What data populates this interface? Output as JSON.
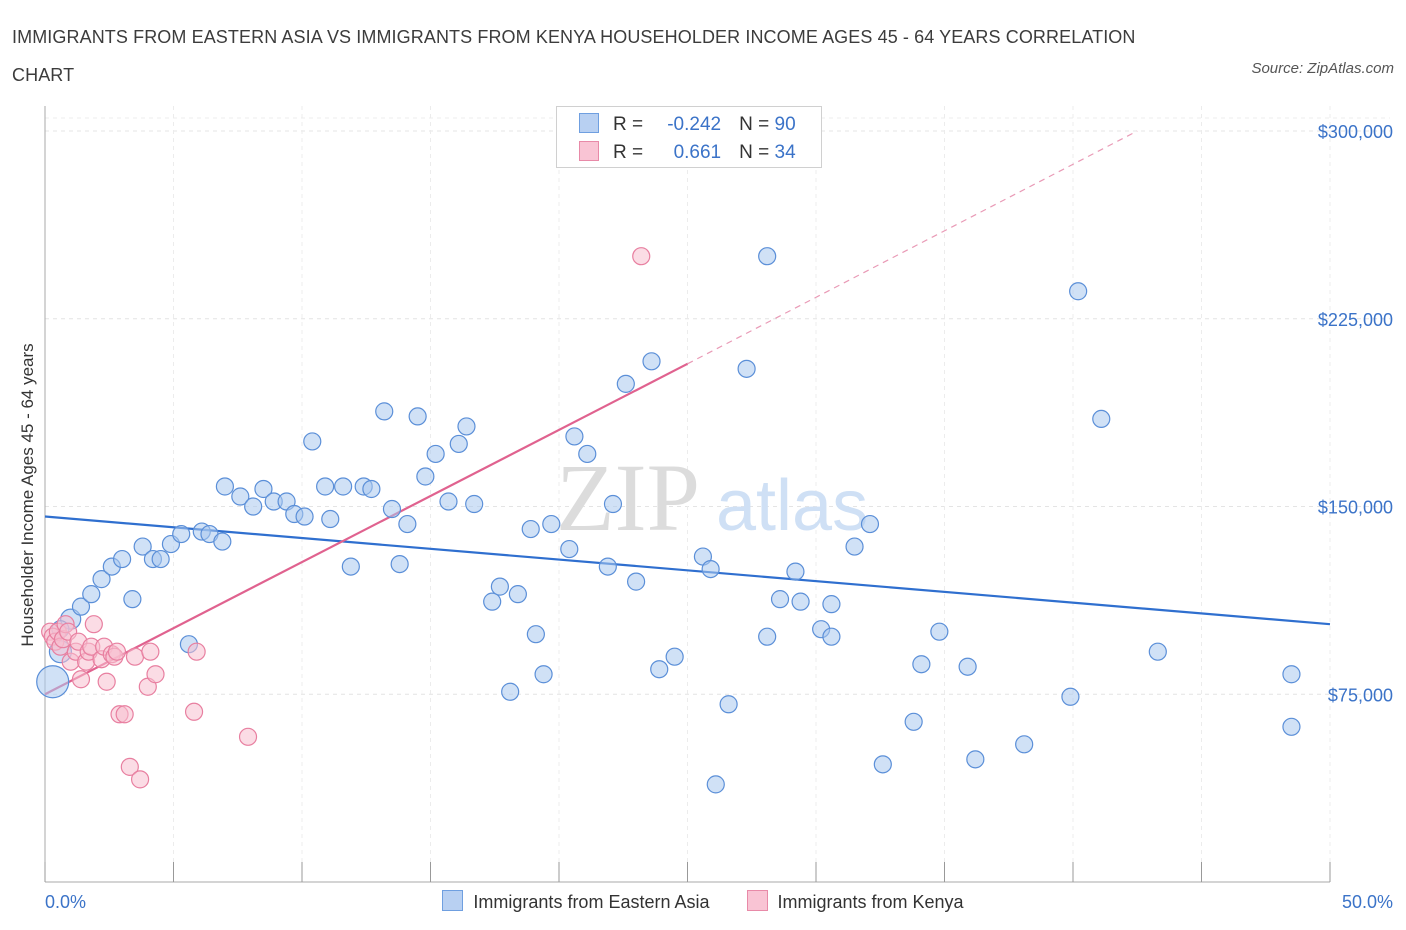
{
  "title": "IMMIGRANTS FROM EASTERN ASIA VS IMMIGRANTS FROM KENYA HOUSEHOLDER INCOME AGES 45 - 64 YEARS CORRELATION CHART",
  "source": "Source: ZipAtlas.com",
  "watermark": {
    "zip": "ZIP",
    "atlas": "atlas"
  },
  "legend": {
    "rows": [
      {
        "r_label": "R =",
        "r_value": "-0.242",
        "n_label": "N =",
        "n_value": "90",
        "color": "#b8d0f2",
        "border": "#6f9fe0"
      },
      {
        "r_label": "R =",
        "r_value": "0.661",
        "n_label": "N =",
        "n_value": "34",
        "color": "#f9c4d4",
        "border": "#e88aa8"
      }
    ]
  },
  "chart_data": {
    "type": "scatter",
    "xlabel": "",
    "ylabel": "Householder Income Ages 45 - 64 years",
    "xlim": [
      0,
      50
    ],
    "ylim": [
      0,
      310000
    ],
    "x_tick_labels": [
      {
        "value": 0,
        "label": "0.0%"
      },
      {
        "value": 50,
        "label": "50.0%"
      }
    ],
    "y_ticks": [
      {
        "value": 75000,
        "label": "$75,000"
      },
      {
        "value": 150000,
        "label": "$150,000"
      },
      {
        "value": 225000,
        "label": "$225,000"
      },
      {
        "value": 300000,
        "label": "$300,000"
      }
    ],
    "grid": true,
    "series": [
      {
        "name": "Immigrants from Eastern Asia",
        "color": "#aac8ef",
        "stroke": "#5b8fd8",
        "trend": {
          "x": [
            0,
            50
          ],
          "y": [
            146000,
            103000
          ],
          "color": "#2f6fcf"
        },
        "points": [
          {
            "x": 0.3,
            "y": 80000,
            "r": 16
          },
          {
            "x": 0.6,
            "y": 92000,
            "r": 11
          },
          {
            "x": 1.0,
            "y": 105000,
            "r": 10
          },
          {
            "x": 1.4,
            "y": 110000
          },
          {
            "x": 1.8,
            "y": 115000
          },
          {
            "x": 2.2,
            "y": 121000
          },
          {
            "x": 2.6,
            "y": 126000
          },
          {
            "x": 3.0,
            "y": 129000
          },
          {
            "x": 3.4,
            "y": 113000
          },
          {
            "x": 3.8,
            "y": 134000
          },
          {
            "x": 4.2,
            "y": 129000
          },
          {
            "x": 4.5,
            "y": 129000
          },
          {
            "x": 4.9,
            "y": 135000
          },
          {
            "x": 5.3,
            "y": 139000
          },
          {
            "x": 5.6,
            "y": 95000
          },
          {
            "x": 6.1,
            "y": 140000
          },
          {
            "x": 6.4,
            "y": 139000
          },
          {
            "x": 6.9,
            "y": 136000
          },
          {
            "x": 7.0,
            "y": 158000
          },
          {
            "x": 7.6,
            "y": 154000
          },
          {
            "x": 8.1,
            "y": 150000
          },
          {
            "x": 8.5,
            "y": 157000
          },
          {
            "x": 8.9,
            "y": 152000
          },
          {
            "x": 9.4,
            "y": 152000
          },
          {
            "x": 9.7,
            "y": 147000
          },
          {
            "x": 10.1,
            "y": 146000
          },
          {
            "x": 10.4,
            "y": 176000
          },
          {
            "x": 10.9,
            "y": 158000
          },
          {
            "x": 11.1,
            "y": 145000
          },
          {
            "x": 11.6,
            "y": 158000
          },
          {
            "x": 11.9,
            "y": 126000
          },
          {
            "x": 12.4,
            "y": 158000
          },
          {
            "x": 12.7,
            "y": 157000
          },
          {
            "x": 13.2,
            "y": 188000
          },
          {
            "x": 13.5,
            "y": 149000
          },
          {
            "x": 13.8,
            "y": 127000
          },
          {
            "x": 14.1,
            "y": 143000
          },
          {
            "x": 14.5,
            "y": 186000
          },
          {
            "x": 14.8,
            "y": 162000
          },
          {
            "x": 15.2,
            "y": 171000
          },
          {
            "x": 15.7,
            "y": 152000
          },
          {
            "x": 16.1,
            "y": 175000
          },
          {
            "x": 16.4,
            "y": 182000
          },
          {
            "x": 16.7,
            "y": 151000
          },
          {
            "x": 17.4,
            "y": 112000
          },
          {
            "x": 17.7,
            "y": 118000
          },
          {
            "x": 18.1,
            "y": 76000
          },
          {
            "x": 18.4,
            "y": 115000
          },
          {
            "x": 18.9,
            "y": 141000
          },
          {
            "x": 19.1,
            "y": 99000
          },
          {
            "x": 19.4,
            "y": 83000
          },
          {
            "x": 19.7,
            "y": 143000
          },
          {
            "x": 20.4,
            "y": 133000
          },
          {
            "x": 20.6,
            "y": 178000
          },
          {
            "x": 21.1,
            "y": 171000
          },
          {
            "x": 21.9,
            "y": 126000
          },
          {
            "x": 22.1,
            "y": 151000
          },
          {
            "x": 22.6,
            "y": 199000
          },
          {
            "x": 23.0,
            "y": 120000
          },
          {
            "x": 23.6,
            "y": 208000
          },
          {
            "x": 23.9,
            "y": 85000
          },
          {
            "x": 24.5,
            "y": 90000
          },
          {
            "x": 25.6,
            "y": 130000
          },
          {
            "x": 25.9,
            "y": 125000
          },
          {
            "x": 26.1,
            "y": 39000
          },
          {
            "x": 26.6,
            "y": 71000
          },
          {
            "x": 27.3,
            "y": 205000
          },
          {
            "x": 28.1,
            "y": 250000
          },
          {
            "x": 28.1,
            "y": 98000
          },
          {
            "x": 28.6,
            "y": 113000
          },
          {
            "x": 29.2,
            "y": 124000
          },
          {
            "x": 29.4,
            "y": 112000
          },
          {
            "x": 30.2,
            "y": 101000
          },
          {
            "x": 30.6,
            "y": 98000
          },
          {
            "x": 30.6,
            "y": 111000
          },
          {
            "x": 31.5,
            "y": 134000
          },
          {
            "x": 32.1,
            "y": 143000
          },
          {
            "x": 32.6,
            "y": 47000
          },
          {
            "x": 33.8,
            "y": 64000
          },
          {
            "x": 34.1,
            "y": 87000
          },
          {
            "x": 34.8,
            "y": 100000
          },
          {
            "x": 35.9,
            "y": 86000
          },
          {
            "x": 36.2,
            "y": 49000
          },
          {
            "x": 38.1,
            "y": 55000
          },
          {
            "x": 39.9,
            "y": 74000
          },
          {
            "x": 40.2,
            "y": 236000
          },
          {
            "x": 41.1,
            "y": 185000
          },
          {
            "x": 43.3,
            "y": 92000
          },
          {
            "x": 48.5,
            "y": 83000
          },
          {
            "x": 48.5,
            "y": 62000
          },
          {
            "x": 0.6,
            "y": 101000
          }
        ]
      },
      {
        "name": "Immigrants from Kenya",
        "color": "#f8bfd0",
        "stroke": "#e87fa0",
        "trend": {
          "x": [
            0,
            25.0
          ],
          "y": [
            75000,
            207000
          ],
          "color": "#e0628f"
        },
        "trend_ext": {
          "x": [
            25.0,
            42.5
          ],
          "y": [
            207000,
            300000
          ],
          "color": "#e99ab6"
        },
        "points": [
          {
            "x": 0.2,
            "y": 100000
          },
          {
            "x": 0.3,
            "y": 98000
          },
          {
            "x": 0.4,
            "y": 96000
          },
          {
            "x": 0.5,
            "y": 100000
          },
          {
            "x": 0.6,
            "y": 94000
          },
          {
            "x": 0.7,
            "y": 97000
          },
          {
            "x": 0.8,
            "y": 103000
          },
          {
            "x": 0.9,
            "y": 100000
          },
          {
            "x": 1.0,
            "y": 88000
          },
          {
            "x": 1.2,
            "y": 92000
          },
          {
            "x": 1.3,
            "y": 96000
          },
          {
            "x": 1.4,
            "y": 81000
          },
          {
            "x": 1.6,
            "y": 88000
          },
          {
            "x": 1.7,
            "y": 92000
          },
          {
            "x": 1.8,
            "y": 94000
          },
          {
            "x": 1.9,
            "y": 103000
          },
          {
            "x": 2.2,
            "y": 89000
          },
          {
            "x": 2.3,
            "y": 94000
          },
          {
            "x": 2.4,
            "y": 80000
          },
          {
            "x": 2.6,
            "y": 91000
          },
          {
            "x": 2.7,
            "y": 90000
          },
          {
            "x": 2.8,
            "y": 92000
          },
          {
            "x": 2.9,
            "y": 67000
          },
          {
            "x": 3.1,
            "y": 67000
          },
          {
            "x": 3.3,
            "y": 46000
          },
          {
            "x": 3.5,
            "y": 90000
          },
          {
            "x": 3.7,
            "y": 41000
          },
          {
            "x": 4.0,
            "y": 78000
          },
          {
            "x": 4.1,
            "y": 92000
          },
          {
            "x": 4.3,
            "y": 83000
          },
          {
            "x": 5.8,
            "y": 68000
          },
          {
            "x": 5.9,
            "y": 92000
          },
          {
            "x": 7.9,
            "y": 58000
          },
          {
            "x": 23.2,
            "y": 250000
          }
        ]
      }
    ]
  }
}
